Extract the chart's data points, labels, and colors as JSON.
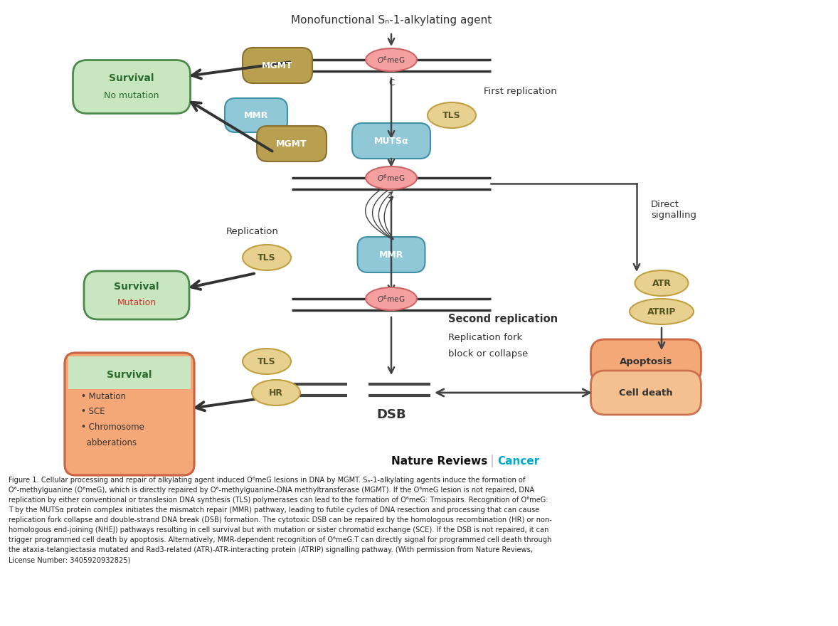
{
  "title": "Monofunctional Sₙ-1-alkylating agent",
  "fig_width": 11.78,
  "fig_height": 8.8,
  "bg_color": "#ffffff",
  "caption_line1": "Nature Reviews",
  "caption_cancer": "Cancer",
  "caption_cancer_color": "#00aacc",
  "figure_caption": "Figure 1. Cellular processing and repair of alkylating agent induced O⁶meG lesions in DNA by MGMT. Sₙ-1-alkylating agents induce the formation of\nO⁶-methylguanine (O⁶meG), which is directly repaired by O⁶-methylguanine-DNA methyltransferase (MGMT). If the O⁶meG lesion is not repaired, DNA\nreplication by either conventional or translesion DNA synthesis (TLS) polymerases can lead to the formation of O⁶meG: Tmispairs. Recognition of O⁶meG:\nT by the MUTSα protein complex initiates the mismatch repair (MMR) pathway, leading to futile cycles of DNA resection and processing that can cause\nreplication fork collapse and double-strand DNA break (DSB) formation. The cytotoxic DSB can be repaired by the homologous recombination (HR) or non-\nhomologous end-joining (NHEJ) pathways resulting in cell survival but with mutation or sister chromatid exchange (SCE). If the DSB is not repaired, it can\ntrigger programmed cell death by apoptosis. Alternatively, MMR-dependent recognition of O⁶meG:T can directly signal for programmed cell death through\nthe ataxia-telangiectasia mutated and Rad3-related (ATR)-ATR-interacting protein (ATRIP) signalling pathway. (With permission from Nature Reviews,\nLicense Number: 3405920932825)"
}
